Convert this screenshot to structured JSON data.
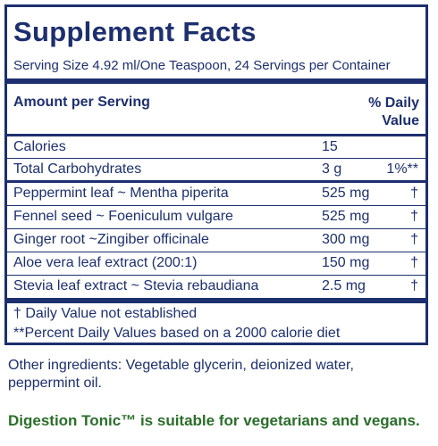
{
  "panel": {
    "title": "Supplement Facts",
    "serving": "Serving Size 4.92 ml/One Teaspoon, 24 Servings per Container",
    "header_amount": "Amount per Serving",
    "header_dv_line1": "% Daily",
    "header_dv_line2": "Value",
    "rows": [
      {
        "name": "Calories",
        "amount": "15",
        "dv": ""
      },
      {
        "name": "Total Carbohydrates",
        "amount": "3 g",
        "dv": "1%**"
      },
      {
        "name": "Peppermint leaf ~ Mentha piperita",
        "amount": "525 mg",
        "dv": "†"
      },
      {
        "name": "Fennel seed ~ Foeniculum vulgare",
        "amount": "525 mg",
        "dv": "†"
      },
      {
        "name": "Ginger root ~Zingiber officinale",
        "amount": "300 mg",
        "dv": "†"
      },
      {
        "name": "Aloe vera leaf extract (200:1)",
        "amount": "150 mg",
        "dv": "†"
      },
      {
        "name": "Stevia leaf extract ~ Stevia rebaudiana",
        "amount": "2.5 mg",
        "dv": "†"
      }
    ],
    "footnote_dagger": "† Daily Value not established",
    "footnote_percent": "**Percent Daily Values based on a 2000 calorie diet"
  },
  "other_ingredients": "Other ingredients: Vegetable glycerin, deionized water, peppermint oil.",
  "suitability_note": "Digestion Tonic™ is suitable for vegetarians and vegans.",
  "colors": {
    "navy": "#1d2f6f",
    "green": "#2a6e2a"
  }
}
